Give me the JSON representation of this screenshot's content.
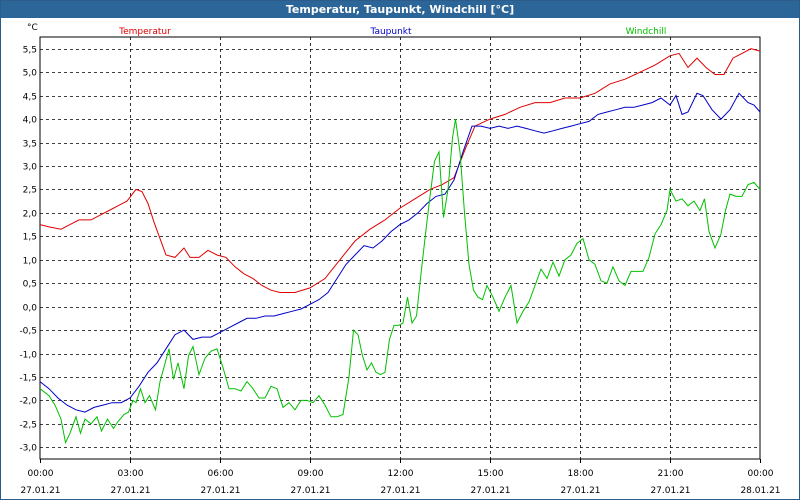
{
  "window": {
    "title": "Temperatur, Taupunkt, Windchill [°C]"
  },
  "chart_data": {
    "type": "line",
    "title": "Temperatur, Taupunkt, Windchill [°C]",
    "ylabel": "°C",
    "ylim": [
      -3.25,
      5.75
    ],
    "xlim": [
      0,
      24
    ],
    "yticks": [
      5.5,
      5.0,
      4.5,
      4.0,
      3.5,
      3.0,
      2.5,
      2.0,
      1.5,
      1.0,
      0.5,
      0.0,
      -0.5,
      -1.0,
      -1.5,
      -2.0,
      -2.5,
      -3.0
    ],
    "ytick_labels": [
      "5,5",
      "5,0",
      "4,5",
      "4,0",
      "3,5",
      "3,0",
      "2,5",
      "2,0",
      "1,5",
      "1,0",
      "0,5",
      "0,0",
      "-0,5",
      "-1,0",
      "-1,5",
      "-2,0",
      "-2,5",
      "-3,0"
    ],
    "xticks": [
      {
        "hour": 0,
        "time": "00:00",
        "date": "27.01.21"
      },
      {
        "hour": 3,
        "time": "03:00",
        "date": "27.01.21"
      },
      {
        "hour": 6,
        "time": "06:00",
        "date": "27.01.21"
      },
      {
        "hour": 9,
        "time": "09:00",
        "date": "27.01.21"
      },
      {
        "hour": 12,
        "time": "12:00",
        "date": "27.01.21"
      },
      {
        "hour": 15,
        "time": "15:00",
        "date": "27.01.21"
      },
      {
        "hour": 18,
        "time": "18:00",
        "date": "27.01.21"
      },
      {
        "hour": 21,
        "time": "21:00",
        "date": "27.01.21"
      },
      {
        "hour": 24,
        "time": "00:00",
        "date": "28.01.21"
      }
    ],
    "series": [
      {
        "name": "Temperatur",
        "color": "#e00000",
        "legend_x_hour": 3.5,
        "points": [
          [
            0,
            1.75
          ],
          [
            0.3,
            1.7
          ],
          [
            0.7,
            1.65
          ],
          [
            1.0,
            1.75
          ],
          [
            1.3,
            1.85
          ],
          [
            1.7,
            1.85
          ],
          [
            2.0,
            1.95
          ],
          [
            2.3,
            2.05
          ],
          [
            2.6,
            2.15
          ],
          [
            2.9,
            2.25
          ],
          [
            3.2,
            2.5
          ],
          [
            3.4,
            2.45
          ],
          [
            3.6,
            2.2
          ],
          [
            3.8,
            1.8
          ],
          [
            4.0,
            1.45
          ],
          [
            4.2,
            1.1
          ],
          [
            4.5,
            1.05
          ],
          [
            4.8,
            1.25
          ],
          [
            5.0,
            1.05
          ],
          [
            5.3,
            1.05
          ],
          [
            5.6,
            1.2
          ],
          [
            5.9,
            1.1
          ],
          [
            6.2,
            1.05
          ],
          [
            6.5,
            0.85
          ],
          [
            6.8,
            0.7
          ],
          [
            7.1,
            0.6
          ],
          [
            7.4,
            0.45
          ],
          [
            7.7,
            0.35
          ],
          [
            8.0,
            0.3
          ],
          [
            8.5,
            0.3
          ],
          [
            9.0,
            0.4
          ],
          [
            9.5,
            0.6
          ],
          [
            10.0,
            1.0
          ],
          [
            10.5,
            1.4
          ],
          [
            11.0,
            1.65
          ],
          [
            11.5,
            1.85
          ],
          [
            12.0,
            2.1
          ],
          [
            12.5,
            2.3
          ],
          [
            13.0,
            2.5
          ],
          [
            13.4,
            2.6
          ],
          [
            13.8,
            2.75
          ],
          [
            14.2,
            3.4
          ],
          [
            14.5,
            3.85
          ],
          [
            15.0,
            4.0
          ],
          [
            15.5,
            4.1
          ],
          [
            16.0,
            4.25
          ],
          [
            16.5,
            4.35
          ],
          [
            17.0,
            4.35
          ],
          [
            17.5,
            4.45
          ],
          [
            18.0,
            4.45
          ],
          [
            18.5,
            4.55
          ],
          [
            19.0,
            4.75
          ],
          [
            19.5,
            4.85
          ],
          [
            20.0,
            5.0
          ],
          [
            20.5,
            5.15
          ],
          [
            21.0,
            5.35
          ],
          [
            21.3,
            5.4
          ],
          [
            21.6,
            5.1
          ],
          [
            21.9,
            5.3
          ],
          [
            22.2,
            5.1
          ],
          [
            22.5,
            4.95
          ],
          [
            22.8,
            4.95
          ],
          [
            23.1,
            5.3
          ],
          [
            23.4,
            5.4
          ],
          [
            23.7,
            5.5
          ],
          [
            24,
            5.45
          ]
        ]
      },
      {
        "name": "Taupunkt",
        "color": "#0000c8",
        "legend_x_hour": 11.7,
        "points": [
          [
            0,
            -1.6
          ],
          [
            0.3,
            -1.75
          ],
          [
            0.6,
            -1.95
          ],
          [
            0.9,
            -2.1
          ],
          [
            1.2,
            -2.2
          ],
          [
            1.5,
            -2.25
          ],
          [
            1.8,
            -2.15
          ],
          [
            2.1,
            -2.1
          ],
          [
            2.4,
            -2.05
          ],
          [
            2.7,
            -2.05
          ],
          [
            3.0,
            -1.95
          ],
          [
            3.3,
            -1.7
          ],
          [
            3.6,
            -1.4
          ],
          [
            3.9,
            -1.2
          ],
          [
            4.2,
            -0.9
          ],
          [
            4.5,
            -0.6
          ],
          [
            4.8,
            -0.5
          ],
          [
            5.1,
            -0.7
          ],
          [
            5.4,
            -0.65
          ],
          [
            5.7,
            -0.65
          ],
          [
            6.0,
            -0.55
          ],
          [
            6.3,
            -0.45
          ],
          [
            6.6,
            -0.35
          ],
          [
            6.9,
            -0.25
          ],
          [
            7.2,
            -0.25
          ],
          [
            7.5,
            -0.2
          ],
          [
            7.8,
            -0.2
          ],
          [
            8.1,
            -0.15
          ],
          [
            8.4,
            -0.1
          ],
          [
            8.7,
            -0.05
          ],
          [
            9.0,
            0.05
          ],
          [
            9.3,
            0.15
          ],
          [
            9.6,
            0.3
          ],
          [
            9.9,
            0.6
          ],
          [
            10.2,
            0.9
          ],
          [
            10.5,
            1.1
          ],
          [
            10.8,
            1.3
          ],
          [
            11.1,
            1.25
          ],
          [
            11.4,
            1.4
          ],
          [
            11.7,
            1.6
          ],
          [
            12.0,
            1.75
          ],
          [
            12.3,
            1.85
          ],
          [
            12.6,
            2.0
          ],
          [
            12.9,
            2.2
          ],
          [
            13.2,
            2.35
          ],
          [
            13.5,
            2.4
          ],
          [
            13.8,
            2.7
          ],
          [
            14.1,
            3.3
          ],
          [
            14.4,
            3.85
          ],
          [
            14.7,
            3.85
          ],
          [
            15.0,
            3.8
          ],
          [
            15.3,
            3.85
          ],
          [
            15.6,
            3.8
          ],
          [
            15.9,
            3.85
          ],
          [
            16.2,
            3.8
          ],
          [
            16.5,
            3.75
          ],
          [
            16.8,
            3.7
          ],
          [
            17.1,
            3.75
          ],
          [
            17.4,
            3.8
          ],
          [
            17.7,
            3.85
          ],
          [
            18.0,
            3.9
          ],
          [
            18.3,
            3.95
          ],
          [
            18.6,
            4.1
          ],
          [
            18.9,
            4.15
          ],
          [
            19.2,
            4.2
          ],
          [
            19.5,
            4.25
          ],
          [
            19.8,
            4.25
          ],
          [
            20.1,
            4.3
          ],
          [
            20.4,
            4.35
          ],
          [
            20.7,
            4.45
          ],
          [
            21.0,
            4.3
          ],
          [
            21.2,
            4.5
          ],
          [
            21.4,
            4.1
          ],
          [
            21.6,
            4.15
          ],
          [
            21.9,
            4.55
          ],
          [
            22.1,
            4.5
          ],
          [
            22.4,
            4.2
          ],
          [
            22.7,
            4.0
          ],
          [
            23.0,
            4.2
          ],
          [
            23.3,
            4.55
          ],
          [
            23.6,
            4.35
          ],
          [
            23.8,
            4.3
          ],
          [
            24,
            4.15
          ]
        ]
      },
      {
        "name": "Windchill",
        "color": "#00c000",
        "legend_x_hour": 20.2,
        "points": [
          [
            0,
            -1.75
          ],
          [
            0.3,
            -1.9
          ],
          [
            0.5,
            -2.1
          ],
          [
            0.7,
            -2.4
          ],
          [
            0.85,
            -2.9
          ],
          [
            1.0,
            -2.7
          ],
          [
            1.2,
            -2.35
          ],
          [
            1.35,
            -2.7
          ],
          [
            1.5,
            -2.4
          ],
          [
            1.7,
            -2.5
          ],
          [
            1.9,
            -2.35
          ],
          [
            2.05,
            -2.65
          ],
          [
            2.25,
            -2.4
          ],
          [
            2.45,
            -2.6
          ],
          [
            2.6,
            -2.45
          ],
          [
            2.8,
            -2.3
          ],
          [
            2.95,
            -2.25
          ],
          [
            3.1,
            -2.0
          ],
          [
            3.2,
            -2.05
          ],
          [
            3.35,
            -1.75
          ],
          [
            3.5,
            -2.05
          ],
          [
            3.65,
            -1.9
          ],
          [
            3.85,
            -2.2
          ],
          [
            4.0,
            -1.6
          ],
          [
            4.15,
            -1.25
          ],
          [
            4.3,
            -0.9
          ],
          [
            4.45,
            -1.55
          ],
          [
            4.6,
            -1.2
          ],
          [
            4.8,
            -1.75
          ],
          [
            4.95,
            -1.05
          ],
          [
            5.1,
            -0.85
          ],
          [
            5.3,
            -1.45
          ],
          [
            5.5,
            -1.1
          ],
          [
            5.7,
            -0.95
          ],
          [
            5.9,
            -0.9
          ],
          [
            6.1,
            -1.3
          ],
          [
            6.3,
            -1.75
          ],
          [
            6.5,
            -1.75
          ],
          [
            6.7,
            -1.8
          ],
          [
            6.9,
            -1.6
          ],
          [
            7.1,
            -1.75
          ],
          [
            7.3,
            -1.95
          ],
          [
            7.5,
            -1.95
          ],
          [
            7.7,
            -1.7
          ],
          [
            7.9,
            -1.75
          ],
          [
            8.1,
            -2.15
          ],
          [
            8.3,
            -2.05
          ],
          [
            8.5,
            -2.2
          ],
          [
            8.7,
            -2.0
          ],
          [
            8.9,
            -2.0
          ],
          [
            9.1,
            -2.05
          ],
          [
            9.3,
            -1.9
          ],
          [
            9.5,
            -2.1
          ],
          [
            9.7,
            -2.35
          ],
          [
            9.9,
            -2.35
          ],
          [
            10.1,
            -2.3
          ],
          [
            10.3,
            -1.5
          ],
          [
            10.45,
            -0.5
          ],
          [
            10.6,
            -0.6
          ],
          [
            10.75,
            -1.05
          ],
          [
            10.9,
            -1.35
          ],
          [
            11.05,
            -1.2
          ],
          [
            11.2,
            -1.4
          ],
          [
            11.35,
            -1.45
          ],
          [
            11.5,
            -1.4
          ],
          [
            11.65,
            -0.7
          ],
          [
            11.8,
            -0.4
          ],
          [
            11.95,
            -0.4
          ],
          [
            12.1,
            -0.35
          ],
          [
            12.25,
            0.2
          ],
          [
            12.4,
            -0.35
          ],
          [
            12.55,
            -0.2
          ],
          [
            12.7,
            0.7
          ],
          [
            12.85,
            1.55
          ],
          [
            13.0,
            2.35
          ],
          [
            13.15,
            3.1
          ],
          [
            13.3,
            3.3
          ],
          [
            13.45,
            1.9
          ],
          [
            13.6,
            2.5
          ],
          [
            13.75,
            3.6
          ],
          [
            13.85,
            4.0
          ],
          [
            14.0,
            3.3
          ],
          [
            14.15,
            2.0
          ],
          [
            14.3,
            0.9
          ],
          [
            14.45,
            0.35
          ],
          [
            14.6,
            0.2
          ],
          [
            14.75,
            0.15
          ],
          [
            14.9,
            0.45
          ],
          [
            15.1,
            0.2
          ],
          [
            15.3,
            -0.1
          ],
          [
            15.5,
            0.2
          ],
          [
            15.7,
            0.45
          ],
          [
            15.9,
            -0.35
          ],
          [
            16.1,
            -0.1
          ],
          [
            16.3,
            0.1
          ],
          [
            16.5,
            0.45
          ],
          [
            16.7,
            0.8
          ],
          [
            16.9,
            0.6
          ],
          [
            17.1,
            0.95
          ],
          [
            17.3,
            0.65
          ],
          [
            17.5,
            1.0
          ],
          [
            17.7,
            1.1
          ],
          [
            17.9,
            1.35
          ],
          [
            18.1,
            1.45
          ],
          [
            18.3,
            1.0
          ],
          [
            18.5,
            0.9
          ],
          [
            18.7,
            0.55
          ],
          [
            18.9,
            0.5
          ],
          [
            19.1,
            0.85
          ],
          [
            19.3,
            0.55
          ],
          [
            19.5,
            0.45
          ],
          [
            19.7,
            0.75
          ],
          [
            19.9,
            0.75
          ],
          [
            20.1,
            0.75
          ],
          [
            20.3,
            1.05
          ],
          [
            20.5,
            1.55
          ],
          [
            20.7,
            1.75
          ],
          [
            20.9,
            2.05
          ],
          [
            21.0,
            2.5
          ],
          [
            21.2,
            2.25
          ],
          [
            21.4,
            2.3
          ],
          [
            21.6,
            2.15
          ],
          [
            21.8,
            2.25
          ],
          [
            22.0,
            2.05
          ],
          [
            22.15,
            2.3
          ],
          [
            22.3,
            1.6
          ],
          [
            22.5,
            1.25
          ],
          [
            22.7,
            1.55
          ],
          [
            22.85,
            2.05
          ],
          [
            23.0,
            2.4
          ],
          [
            23.2,
            2.35
          ],
          [
            23.4,
            2.35
          ],
          [
            23.6,
            2.6
          ],
          [
            23.8,
            2.65
          ],
          [
            24,
            2.5
          ]
        ]
      }
    ]
  }
}
